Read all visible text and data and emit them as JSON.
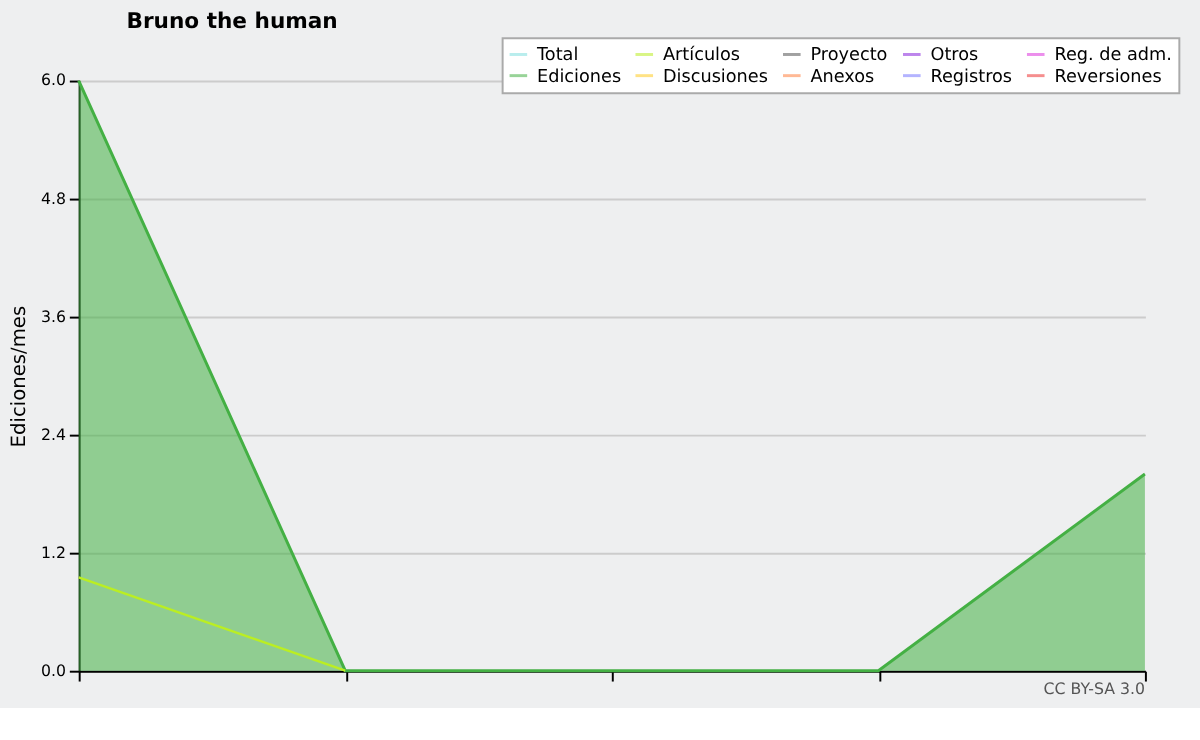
{
  "chart_data": {
    "type": "line",
    "title": "Bruno the human",
    "ylabel": "Ediciones/mes",
    "categories": [
      null,
      null,
      null,
      null,
      null
    ],
    "series": [
      {
        "name": "Total",
        "color": "#80e0e0",
        "values": [
          null,
          null,
          null,
          null,
          null
        ]
      },
      {
        "name": "Ediciones",
        "color": "#44b044",
        "type": "area",
        "values": [
          6.0,
          0,
          0,
          0,
          2.0
        ]
      },
      {
        "name": "Artículos",
        "color": "#bbee22",
        "values": [
          0.95,
          0,
          null,
          null,
          null
        ]
      },
      {
        "name": "Discusiones",
        "color": "#ffcc22",
        "values": [
          null,
          null,
          null,
          null,
          null
        ]
      },
      {
        "name": "Proyecto",
        "color": "#555555",
        "values": [
          null,
          null,
          null,
          null,
          null
        ]
      },
      {
        "name": "Anexos",
        "color": "#ff8040",
        "values": [
          null,
          null,
          null,
          null,
          null
        ]
      },
      {
        "name": "Otros",
        "color": "#8822dd",
        "values": [
          null,
          null,
          null,
          null,
          null
        ]
      },
      {
        "name": "Registros",
        "color": "#7777ff",
        "values": [
          null,
          null,
          null,
          null,
          null
        ]
      },
      {
        "name": "Reg. de adm.",
        "color": "#dd33dd",
        "values": [
          null,
          null,
          null,
          null,
          null
        ]
      },
      {
        "name": "Reversiones",
        "color": "#ee3333",
        "values": [
          null,
          null,
          null,
          null,
          null
        ]
      }
    ],
    "ylim": [
      0,
      6.0
    ],
    "yticks": [
      {
        "value": 0,
        "label": "0.0"
      },
      {
        "value": 1.2,
        "label": "1.2"
      },
      {
        "value": 2.4,
        "label": "2.4"
      },
      {
        "value": 3.6,
        "label": "3.6"
      },
      {
        "value": 4.8,
        "label": "4.8"
      },
      {
        "value": 6,
        "label": "6.0"
      }
    ],
    "grid": "y",
    "legend": "top right",
    "tick_labels": "y",
    "annotations": [
      "CC BY-SA 3.0"
    ]
  }
}
